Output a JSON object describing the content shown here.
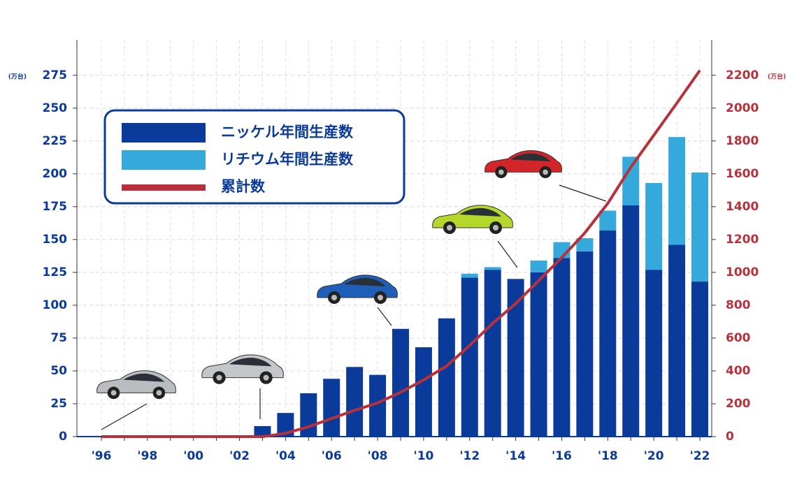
{
  "chart_data": {
    "type": "bar",
    "stacked": true,
    "categories": [
      "'96",
      null,
      "'98",
      null,
      "'00",
      null,
      "'02",
      null,
      "'04",
      null,
      "'06",
      null,
      "'08",
      null,
      "'10",
      null,
      "'12",
      null,
      "'14",
      null,
      "'16",
      null,
      "'18",
      null,
      "'20",
      null,
      "'22"
    ],
    "series": [
      {
        "name": "ニッケル年間生産数",
        "color": "#0a3a9a",
        "type": "bar",
        "values": [
          0,
          0,
          0,
          0,
          0,
          0,
          0,
          8,
          18,
          33,
          44,
          53,
          47,
          82,
          68,
          90,
          121,
          127,
          120,
          125,
          136,
          141,
          157,
          176,
          127,
          146,
          118
        ]
      },
      {
        "name": "リチウム年間生産数",
        "color": "#35a8dc",
        "type": "bar",
        "values": [
          0,
          0,
          0,
          0,
          0,
          0,
          0,
          0,
          0,
          0,
          0,
          0,
          0,
          0,
          0,
          0,
          3,
          2,
          0,
          9,
          12,
          10,
          15,
          37,
          66,
          82,
          83
        ]
      },
      {
        "name": "累計数",
        "color": "#b8303a",
        "type": "line",
        "axis": "y2",
        "values": [
          0,
          0,
          0,
          0,
          0,
          0,
          0,
          0,
          20,
          60,
          110,
          160,
          205,
          270,
          345,
          430,
          555,
          690,
          810,
          950,
          1090,
          1240,
          1420,
          1640,
          1835,
          2030,
          2230
        ]
      }
    ],
    "ylim": [
      0,
      302
    ],
    "yticks": [
      0,
      25,
      50,
      75,
      100,
      125,
      150,
      175,
      200,
      225,
      250,
      275
    ],
    "y2lim": [
      0,
      2416
    ],
    "y2ticks": [
      0,
      200,
      400,
      600,
      800,
      1000,
      1200,
      1400,
      1600,
      1800,
      2000,
      2200
    ],
    "y_unit": "(万台)",
    "y2_unit": "(万台)",
    "grid": true,
    "legend": "upper left"
  }
}
